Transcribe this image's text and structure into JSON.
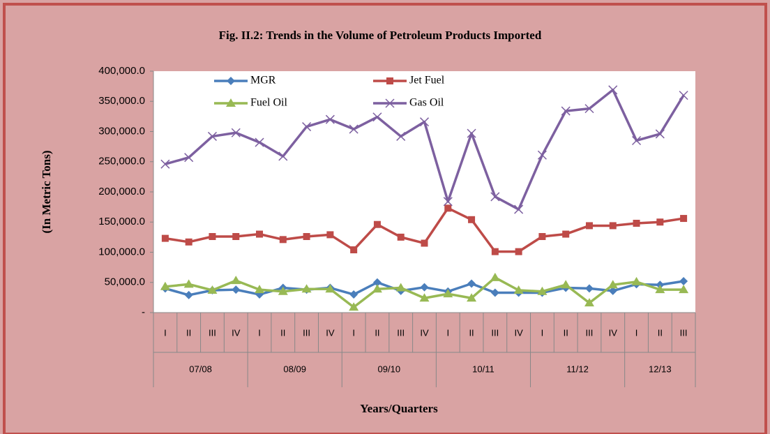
{
  "chart_data": {
    "type": "line",
    "title": "Fig. II.2: Trends in the Volume of Petroleum  Products Imported",
    "y_label": "(In Metric Tons)",
    "x_label": "Years/Quarters",
    "categories": [
      "I",
      "II",
      "III",
      "IV",
      "I",
      "II",
      "III",
      "IV",
      "I",
      "II",
      "III",
      "IV",
      "I",
      "II",
      "III",
      "IV",
      "I",
      "II",
      "III",
      "IV",
      "I",
      "II",
      "III"
    ],
    "groups": [
      "07/08",
      "08/09",
      "09/10",
      "10/11",
      "11/12",
      "12/13"
    ],
    "ylim": [
      0,
      400000
    ],
    "yticks": [
      {
        "value": 0,
        "label": "-"
      },
      {
        "value": 50000,
        "label": "50,000.0"
      },
      {
        "value": 100000,
        "label": "100,000.0"
      },
      {
        "value": 150000,
        "label": "150,000.0"
      },
      {
        "value": 200000,
        "label": "200,000.0"
      },
      {
        "value": 250000,
        "label": "250,000.0"
      },
      {
        "value": 300000,
        "label": "300,000.0"
      },
      {
        "value": 350000,
        "label": "350,000.0"
      },
      {
        "value": 400000,
        "label": "400,000.0"
      }
    ],
    "series": [
      {
        "name": "MGR",
        "color": "#4a7ebb",
        "marker": "diamond",
        "values": [
          40000,
          29000,
          37000,
          38000,
          30000,
          41000,
          38000,
          41000,
          30000,
          50000,
          36000,
          42000,
          35000,
          48000,
          33000,
          33000,
          33000,
          41000,
          40000,
          36000,
          47000,
          46000,
          52000
        ]
      },
      {
        "name": "Jet Fuel",
        "color": "#be4b48",
        "marker": "square",
        "values": [
          123000,
          117000,
          126000,
          126000,
          130000,
          121000,
          126000,
          129000,
          104000,
          146000,
          125000,
          115000,
          173000,
          154000,
          101000,
          101000,
          126000,
          130000,
          144000,
          144000,
          148000,
          150000,
          156000
        ]
      },
      {
        "name": "Fuel Oil",
        "color": "#98b954",
        "marker": "triangle",
        "values": [
          43000,
          47000,
          37000,
          53000,
          38000,
          35000,
          39000,
          39000,
          9000,
          39000,
          41000,
          24000,
          31000,
          24000,
          58000,
          37000,
          35000,
          46000,
          16000,
          46000,
          51000,
          38000,
          38000
        ]
      },
      {
        "name": "Gas Oil",
        "color": "#7d60a0",
        "marker": "x",
        "values": [
          246000,
          257000,
          292000,
          298000,
          282000,
          259000,
          308000,
          320000,
          304000,
          324000,
          292000,
          316000,
          184000,
          297000,
          192000,
          171000,
          261000,
          334000,
          338000,
          369000,
          285000,
          296000,
          360000
        ]
      }
    ]
  }
}
